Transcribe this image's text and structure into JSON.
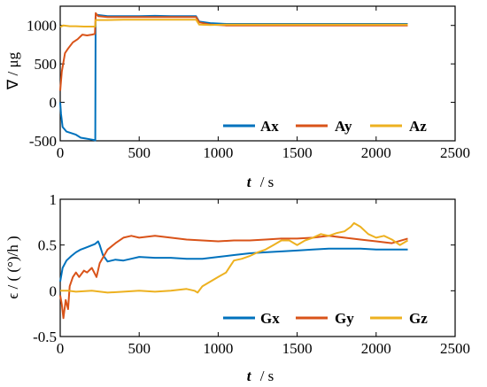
{
  "figure": {
    "colors": {
      "blue": "#0072BD",
      "orange": "#D95319",
      "yellow": "#EDB120",
      "axis": "#000000"
    }
  },
  "chart_data": [
    {
      "type": "line",
      "ylabel": "∇ / μg",
      "xlabel_symbol": "t",
      "xlabel_unit": "/ s",
      "xlim": [
        0,
        2500
      ],
      "ylim": [
        -500,
        1250
      ],
      "xticks": [
        0,
        500,
        1000,
        1500,
        2000,
        2500
      ],
      "yticks": [
        -500,
        0,
        500,
        1000
      ],
      "ytick_labels": [
        "-500",
        "0",
        "500",
        "1000"
      ],
      "legend_position": "bottom-right",
      "series": [
        {
          "name": "Ax",
          "color": "#0072BD",
          "points": [
            [
              0,
              0
            ],
            [
              5,
              -150
            ],
            [
              15,
              -320
            ],
            [
              40,
              -380
            ],
            [
              70,
              -400
            ],
            [
              100,
              -420
            ],
            [
              130,
              -460
            ],
            [
              160,
              -470
            ],
            [
              190,
              -480
            ],
            [
              215,
              -490
            ],
            [
              222,
              -495
            ],
            [
              224,
              1140
            ],
            [
              300,
              1120
            ],
            [
              400,
              1120
            ],
            [
              500,
              1120
            ],
            [
              600,
              1125
            ],
            [
              700,
              1120
            ],
            [
              800,
              1120
            ],
            [
              860,
              1120
            ],
            [
              880,
              1050
            ],
            [
              950,
              1030
            ],
            [
              1050,
              1020
            ],
            [
              1200,
              1020
            ],
            [
              1400,
              1020
            ],
            [
              1600,
              1020
            ],
            [
              1800,
              1020
            ],
            [
              2000,
              1020
            ],
            [
              2200,
              1020
            ]
          ]
        },
        {
          "name": "Ay",
          "color": "#D95319",
          "points": [
            [
              0,
              150
            ],
            [
              10,
              400
            ],
            [
              30,
              640
            ],
            [
              50,
              700
            ],
            [
              80,
              780
            ],
            [
              110,
              820
            ],
            [
              140,
              880
            ],
            [
              170,
              870
            ],
            [
              200,
              880
            ],
            [
              220,
              890
            ],
            [
              225,
              1160
            ],
            [
              240,
              1120
            ],
            [
              300,
              1110
            ],
            [
              400,
              1110
            ],
            [
              500,
              1110
            ],
            [
              600,
              1110
            ],
            [
              700,
              1110
            ],
            [
              800,
              1110
            ],
            [
              860,
              1110
            ],
            [
              880,
              1040
            ],
            [
              950,
              1010
            ],
            [
              1050,
              1000
            ],
            [
              1200,
              1000
            ],
            [
              1400,
              1000
            ],
            [
              1600,
              1000
            ],
            [
              1800,
              1000
            ],
            [
              2000,
              1000
            ],
            [
              2200,
              1000
            ]
          ]
        },
        {
          "name": "Az",
          "color": "#EDB120",
          "points": [
            [
              0,
              980
            ],
            [
              20,
              1000
            ],
            [
              60,
              990
            ],
            [
              100,
              990
            ],
            [
              150,
              985
            ],
            [
              200,
              985
            ],
            [
              222,
              985
            ],
            [
              224,
              1070
            ],
            [
              300,
              1070
            ],
            [
              400,
              1075
            ],
            [
              500,
              1075
            ],
            [
              600,
              1075
            ],
            [
              700,
              1075
            ],
            [
              800,
              1075
            ],
            [
              860,
              1075
            ],
            [
              880,
              1010
            ],
            [
              950,
              1005
            ],
            [
              1050,
              1010
            ],
            [
              1200,
              1010
            ],
            [
              1400,
              1010
            ],
            [
              1600,
              1010
            ],
            [
              1800,
              1010
            ],
            [
              2000,
              1010
            ],
            [
              2200,
              1010
            ]
          ]
        }
      ]
    },
    {
      "type": "line",
      "ylabel": "ϵ / ( (°)/h )",
      "xlabel_symbol": "t",
      "xlabel_unit": "/ s",
      "xlim": [
        0,
        2500
      ],
      "ylim": [
        -0.5,
        1
      ],
      "xticks": [
        0,
        500,
        1000,
        1500,
        2000,
        2500
      ],
      "yticks": [
        -0.5,
        0,
        0.5,
        1
      ],
      "ytick_labels": [
        "-0.5",
        "0",
        "0.5",
        "1"
      ],
      "legend_position": "bottom-right",
      "series": [
        {
          "name": "Gx",
          "color": "#0072BD",
          "points": [
            [
              0,
              0.1
            ],
            [
              15,
              0.25
            ],
            [
              40,
              0.33
            ],
            [
              70,
              0.38
            ],
            [
              100,
              0.42
            ],
            [
              130,
              0.45
            ],
            [
              160,
              0.47
            ],
            [
              190,
              0.49
            ],
            [
              220,
              0.51
            ],
            [
              240,
              0.54
            ],
            [
              250,
              0.5
            ],
            [
              270,
              0.39
            ],
            [
              300,
              0.32
            ],
            [
              350,
              0.34
            ],
            [
              400,
              0.33
            ],
            [
              450,
              0.35
            ],
            [
              500,
              0.37
            ],
            [
              600,
              0.36
            ],
            [
              700,
              0.36
            ],
            [
              800,
              0.35
            ],
            [
              900,
              0.35
            ],
            [
              1000,
              0.37
            ],
            [
              1100,
              0.39
            ],
            [
              1200,
              0.41
            ],
            [
              1300,
              0.42
            ],
            [
              1400,
              0.43
            ],
            [
              1500,
              0.44
            ],
            [
              1600,
              0.45
            ],
            [
              1700,
              0.46
            ],
            [
              1800,
              0.46
            ],
            [
              1900,
              0.46
            ],
            [
              2000,
              0.45
            ],
            [
              2100,
              0.45
            ],
            [
              2200,
              0.45
            ]
          ]
        },
        {
          "name": "Gy",
          "color": "#D95319",
          "points": [
            [
              0,
              -0.05
            ],
            [
              10,
              -0.15
            ],
            [
              20,
              -0.3
            ],
            [
              35,
              -0.1
            ],
            [
              50,
              -0.2
            ],
            [
              60,
              0.05
            ],
            [
              80,
              0.15
            ],
            [
              100,
              0.2
            ],
            [
              120,
              0.15
            ],
            [
              150,
              0.22
            ],
            [
              170,
              0.2
            ],
            [
              200,
              0.25
            ],
            [
              230,
              0.15
            ],
            [
              250,
              0.3
            ],
            [
              300,
              0.45
            ],
            [
              350,
              0.52
            ],
            [
              400,
              0.58
            ],
            [
              450,
              0.6
            ],
            [
              500,
              0.58
            ],
            [
              600,
              0.6
            ],
            [
              700,
              0.58
            ],
            [
              800,
              0.56
            ],
            [
              900,
              0.55
            ],
            [
              1000,
              0.54
            ],
            [
              1100,
              0.55
            ],
            [
              1200,
              0.55
            ],
            [
              1300,
              0.56
            ],
            [
              1400,
              0.57
            ],
            [
              1500,
              0.57
            ],
            [
              1600,
              0.58
            ],
            [
              1700,
              0.6
            ],
            [
              1800,
              0.58
            ],
            [
              1900,
              0.56
            ],
            [
              2000,
              0.54
            ],
            [
              2100,
              0.52
            ],
            [
              2200,
              0.57
            ]
          ]
        },
        {
          "name": "Gz",
          "color": "#EDB120",
          "points": [
            [
              0,
              0.0
            ],
            [
              50,
              0.0
            ],
            [
              100,
              -0.01
            ],
            [
              200,
              0.0
            ],
            [
              300,
              -0.02
            ],
            [
              400,
              -0.01
            ],
            [
              500,
              0.0
            ],
            [
              600,
              -0.01
            ],
            [
              700,
              0.0
            ],
            [
              800,
              0.02
            ],
            [
              850,
              0.0
            ],
            [
              870,
              -0.02
            ],
            [
              900,
              0.05
            ],
            [
              950,
              0.1
            ],
            [
              1000,
              0.15
            ],
            [
              1050,
              0.2
            ],
            [
              1080,
              0.28
            ],
            [
              1100,
              0.33
            ],
            [
              1150,
              0.35
            ],
            [
              1200,
              0.38
            ],
            [
              1250,
              0.42
            ],
            [
              1300,
              0.45
            ],
            [
              1350,
              0.5
            ],
            [
              1400,
              0.55
            ],
            [
              1450,
              0.55
            ],
            [
              1500,
              0.5
            ],
            [
              1550,
              0.55
            ],
            [
              1600,
              0.58
            ],
            [
              1650,
              0.62
            ],
            [
              1700,
              0.6
            ],
            [
              1750,
              0.63
            ],
            [
              1800,
              0.65
            ],
            [
              1840,
              0.7
            ],
            [
              1860,
              0.74
            ],
            [
              1900,
              0.7
            ],
            [
              1950,
              0.62
            ],
            [
              2000,
              0.58
            ],
            [
              2050,
              0.6
            ],
            [
              2100,
              0.56
            ],
            [
              2150,
              0.5
            ],
            [
              2200,
              0.55
            ]
          ]
        }
      ]
    }
  ]
}
